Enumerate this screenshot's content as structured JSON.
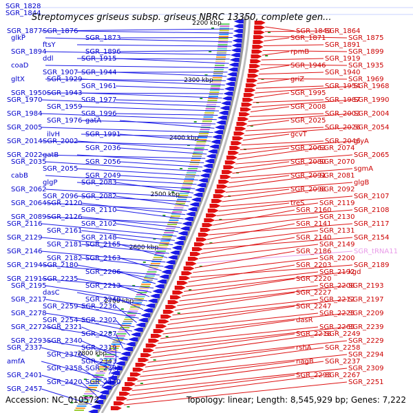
{
  "header": {
    "title": "Streptomyces griseus subsp. griseus NBRC 13350, complete gen...",
    "labels_top": [
      "SGR_1828",
      "SGR_1844"
    ]
  },
  "footer": {
    "accession": "Accession: NC_010572",
    "summary": "Topology: linear; Length: 8,545,929 bp; Genes: 7,222"
  },
  "scale": [
    "2200 kbp",
    "2300 kbp",
    "2400 kbp",
    "2500 kbp",
    "2600 kbp",
    "2700 kbp",
    "2800 kbp"
  ],
  "colors": {
    "reverse_strand": "#0000cc",
    "forward_strand": "#dd0000",
    "trna": "#e89ae8",
    "axis": "#888888"
  },
  "left_genes": [
    "SGR_1877",
    "SGR_1876",
    "SGR_1873",
    "glkP",
    "ftsY",
    "SGR_1896",
    "SGR_1894",
    "ddl",
    "SGR_1915",
    "coaD",
    "SGR_1907",
    "SGR_1944",
    "gltX",
    "SGR_1929",
    "SGR_1961",
    "SGR_1950",
    "SGR_1943",
    "SGR_1977",
    "SGR_1970",
    "SGR_1959",
    "SGR_1996",
    "SGR_1984",
    "SGR_1976",
    "gatA",
    "SGR_2005",
    "ilvH",
    "SGR_1991",
    "SGR_2014",
    "SGR_2002",
    "SGR_2036",
    "SGR_2022",
    "gatB",
    "SGR_2056",
    "SGR_2035",
    "SGR_2055",
    "SGR_2049",
    "cabB",
    "glgP",
    "SGR_2083",
    "SGR_2062",
    "SGR_2096",
    "SGR_2082",
    "SGR_2064",
    "SGR_2120",
    "SGR_2110",
    "SGR_2089",
    "SGR_2126",
    "SGR_2102",
    "SGR_2116",
    "SGR_2161",
    "SGR_2148",
    "SGR_2129",
    "SGR_2181",
    "SGR_2165",
    "SGR_2146",
    "SGR_2182",
    "SGR_2163",
    "SGR_2194",
    "SGR_2180",
    "SGR_2206",
    "SGR_2191",
    "SGR_2235",
    "SGR_2213",
    "SGR_2195",
    "dasC",
    "SGR_2240",
    "SGR_2217",
    "SGR_2259",
    "SGR_2236",
    "SGR_2278",
    "SGR_2254",
    "SGR_2302",
    "SGR_2272",
    "SGR_2321",
    "SGR_2287",
    "SGR_2293",
    "SGR_2340",
    "SGR_2319",
    "SGR_2337",
    "SGR_2370",
    "SGR_2343",
    "amfA",
    "SGR_2358",
    "SGR_2383",
    "SGR_2401",
    "SGR_2420",
    "SGR_2440",
    "SGR_2457"
  ],
  "right_genes": [
    "SGR_1849",
    "SGR_1864",
    "SGR_1875",
    "SGR_1871",
    "SGR_1891",
    "SGR_1899",
    "rpmB",
    "SGR_1919",
    "SGR_1935",
    "SGR_1946",
    "SGR_1940",
    "SGR_1969",
    "griZ",
    "SGR_1954",
    "SGR_1968",
    "SGR_1995",
    "SGR_1987",
    "SGR_1990",
    "SGR_2008",
    "SGR_2003",
    "SGR_2004",
    "SGR_2025",
    "SGR_2026",
    "SGR_2054",
    "gcvT",
    "SGR_2046",
    "glyA",
    "SGR_2063",
    "SGR_2074",
    "SGR_2065",
    "SGR_2080",
    "SGR_2070",
    "sgmA",
    "SGR_2091",
    "SGR_2081",
    "glgB",
    "SGR_2098",
    "SGR_2092",
    "SGR_2107",
    "treS",
    "SGR_2119",
    "SGR_2108",
    "SGR_2160",
    "SGR_2130",
    "SGR_2117",
    "SGR_2141",
    "SGR_2131",
    "SGR_2154",
    "SGR_2140",
    "SGR_2149",
    "SGR_tRNA11",
    "SGR_2186",
    "SGR_2200",
    "SGR_2189",
    "SGR_2203",
    "SGR_2192",
    "kgd",
    "SGR_2220",
    "SGR_2208",
    "SGR_2193",
    "SGR_2227",
    "SGR_2212",
    "SGR_2197",
    "SGR_2247",
    "SGR_2225",
    "SGR_2209",
    "dasR",
    "SGR_2265",
    "SGR_2239",
    "SGR_2218",
    "SGR_2249",
    "SGR_2229",
    "rshA",
    "SGR_2258",
    "SGR_2294",
    "nagB",
    "SGR_2237",
    "SGR_2309",
    "SGR_2295",
    "SGR_2267",
    "SGR_2251"
  ]
}
